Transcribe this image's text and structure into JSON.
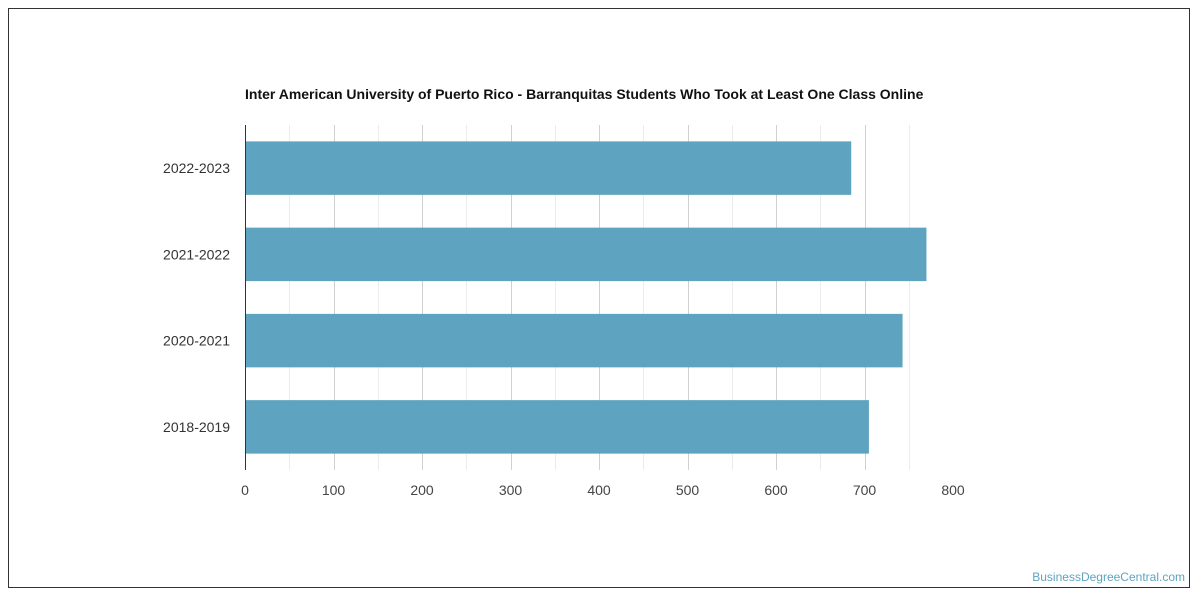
{
  "chart_data": {
    "type": "bar",
    "orientation": "horizontal",
    "title": "Inter American University of Puerto Rico - Barranquitas Students Who Took at Least One Class Online",
    "categories": [
      "2022-2023",
      "2021-2022",
      "2020-2021",
      "2018-2019"
    ],
    "values": [
      685,
      770,
      743,
      705
    ],
    "xlim": [
      0,
      800
    ],
    "x_ticks": [
      0,
      100,
      200,
      300,
      400,
      500,
      600,
      700,
      800
    ],
    "grid": true,
    "bar_color": "#5ea4c0"
  },
  "watermark": "BusinessDegreeCentral.com"
}
